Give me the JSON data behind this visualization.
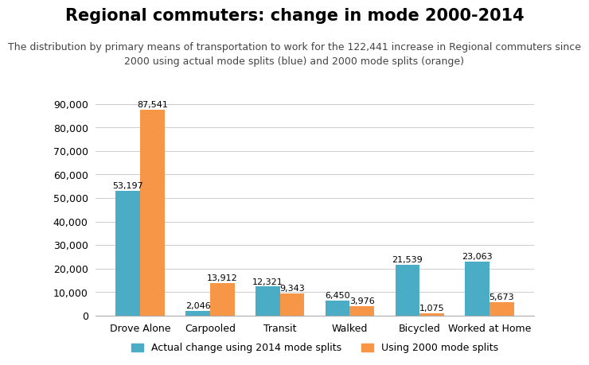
{
  "title": "Regional commuters: change in mode 2000-2014",
  "subtitle": "The distribution by primary means of transportation to work for the 122,441 increase in Regional commuters since\n2000 using actual mode splits (blue) and 2000 mode splits (orange)",
  "categories": [
    "Drove Alone",
    "Carpooled",
    "Transit",
    "Walked",
    "Bicycled",
    "Worked at Home"
  ],
  "blue_values": [
    53197,
    2046,
    12321,
    6450,
    21539,
    23063
  ],
  "orange_values": [
    87541,
    13912,
    9343,
    3976,
    1075,
    5673
  ],
  "blue_labels": [
    "53,197",
    "2,046",
    "12,321",
    "6,450",
    "21,539",
    "23,063"
  ],
  "orange_labels": [
    "87,541",
    "13,912",
    "9,343",
    "3,976",
    "1,075",
    "5,673"
  ],
  "blue_color": "#4BACC6",
  "orange_color": "#F79646",
  "ylim": [
    0,
    90000
  ],
  "yticks": [
    0,
    10000,
    20000,
    30000,
    40000,
    50000,
    60000,
    70000,
    80000,
    90000
  ],
  "legend_blue": "Actual change using 2014 mode splits",
  "legend_orange": "Using 2000 mode splits",
  "background_color": "#FFFFFF",
  "grid_color": "#CCCCCC",
  "title_fontsize": 15,
  "subtitle_fontsize": 9,
  "tick_fontsize": 9,
  "label_fontsize": 8,
  "bar_width": 0.35
}
